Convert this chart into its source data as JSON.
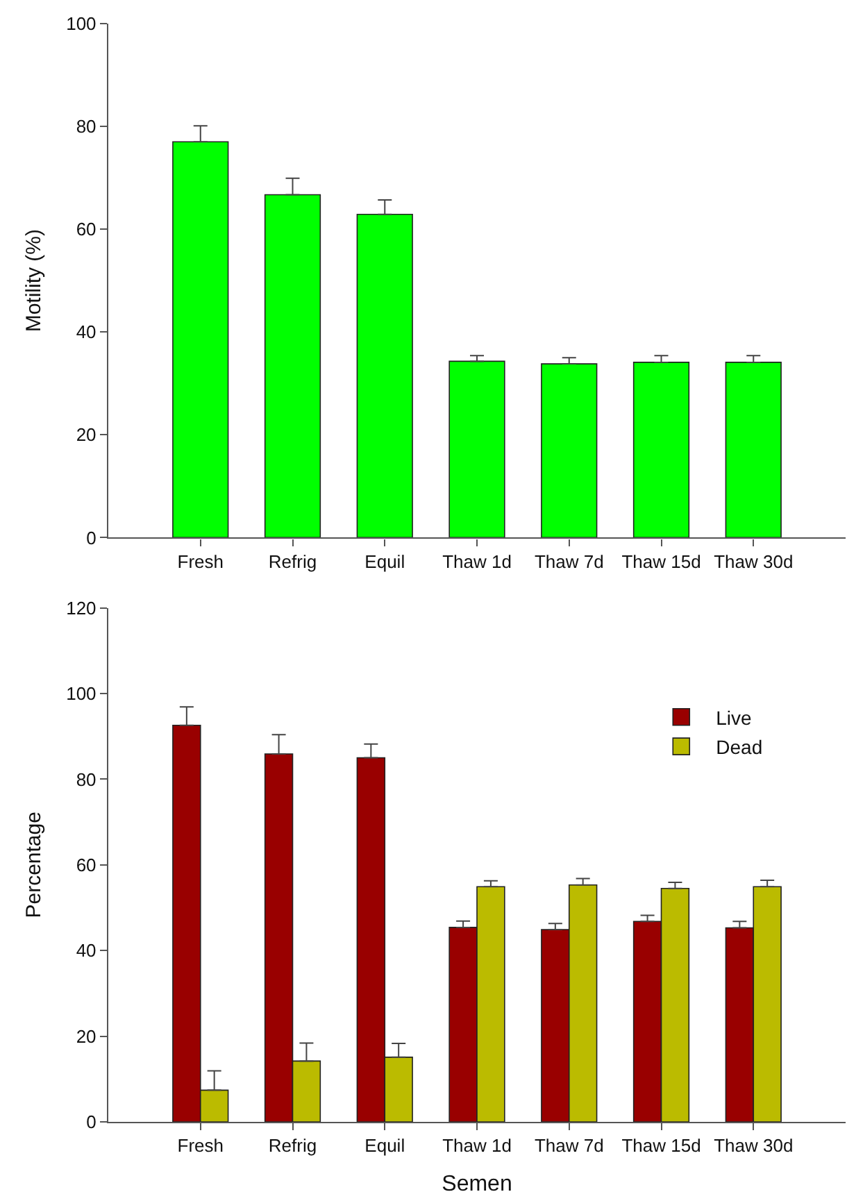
{
  "chart_data": [
    {
      "type": "bar",
      "categories": [
        "Fresh",
        "Refrig",
        "Equil",
        "Thaw 1d",
        "Thaw 7d",
        "Thaw 15d",
        "Thaw 30d"
      ],
      "values": [
        77.0,
        66.7,
        62.9,
        34.3,
        33.8,
        34.1,
        34.1
      ],
      "color": "#00ff00",
      "errors": [
        [
          77.0,
          80.1
        ],
        [
          66.7,
          69.9
        ],
        [
          62.9,
          65.7
        ],
        [
          34.3,
          35.4
        ],
        [
          33.8,
          35.0
        ],
        [
          34.1,
          35.4
        ],
        [
          34.1,
          35.4
        ]
      ],
      "ylabel": "Motility (%)",
      "ylim": [
        0,
        100
      ],
      "yticks": [
        0,
        20,
        40,
        60,
        80,
        100
      ],
      "grid": false,
      "legend": false
    },
    {
      "type": "bar",
      "categories": [
        "Fresh",
        "Refrig",
        "Equil",
        "Thaw 1d",
        "Thaw 7d",
        "Thaw 15d",
        "Thaw 30d"
      ],
      "series": [
        {
          "name": "Live",
          "color": "#990000",
          "values": [
            92.6,
            85.9,
            85.0,
            45.4,
            44.9,
            46.8,
            45.3
          ],
          "errors": [
            [
              92.6,
              96.9
            ],
            [
              85.9,
              90.4
            ],
            [
              85.0,
              88.2
            ],
            [
              45.4,
              46.9
            ],
            [
              44.9,
              46.3
            ],
            [
              46.8,
              48.2
            ],
            [
              45.3,
              46.8
            ]
          ]
        },
        {
          "name": "Dead",
          "color": "#bbbb00",
          "values": [
            7.4,
            14.2,
            15.1,
            54.9,
            55.3,
            54.5,
            54.9
          ],
          "errors": [
            [
              7.4,
              11.9
            ],
            [
              14.2,
              18.4
            ],
            [
              15.1,
              18.3
            ],
            [
              54.9,
              56.3
            ],
            [
              55.3,
              56.8
            ],
            [
              54.5,
              55.9
            ],
            [
              54.9,
              56.4
            ]
          ]
        }
      ],
      "xlabel": "Semen",
      "ylabel": "Percentage",
      "ylim": [
        0,
        120
      ],
      "yticks": [
        0,
        20,
        40,
        60,
        80,
        100,
        120
      ],
      "grid": false,
      "legend": "top right"
    }
  ]
}
